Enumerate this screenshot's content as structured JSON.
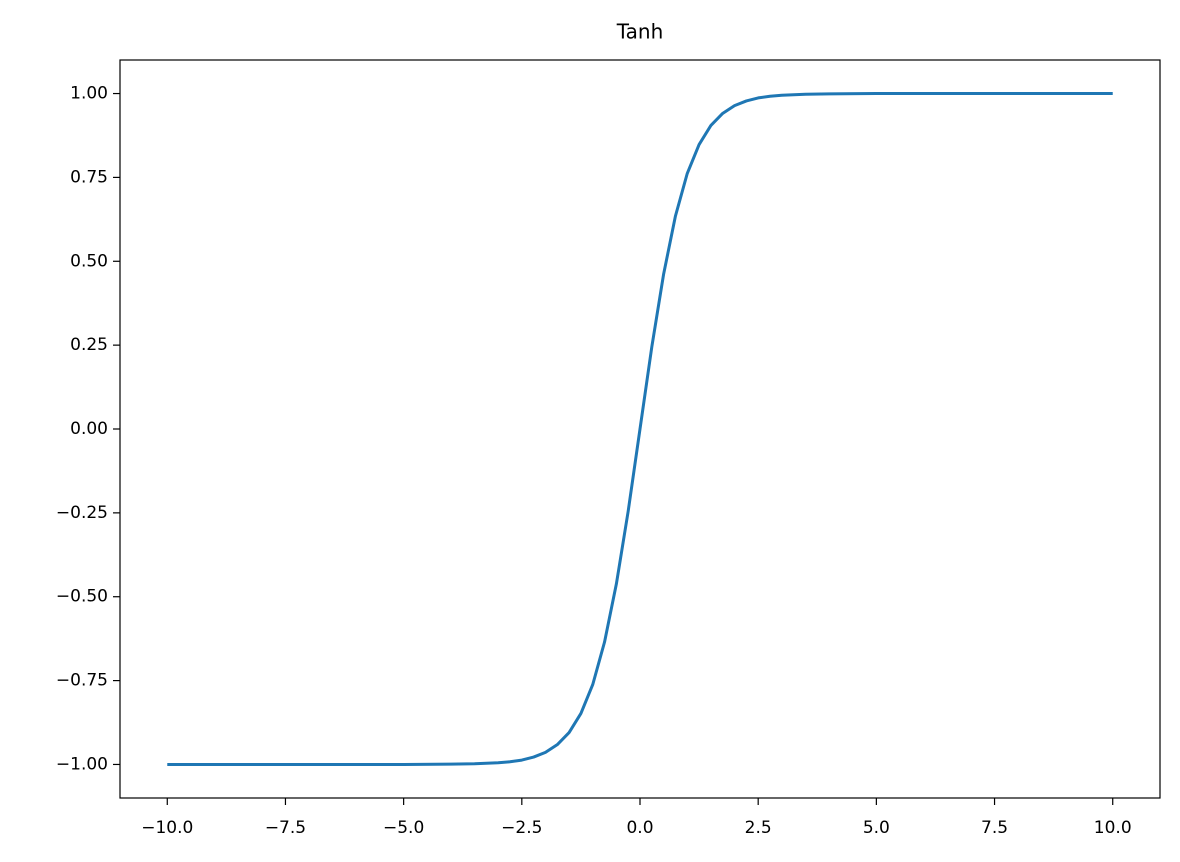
{
  "chart_data": {
    "type": "line",
    "title": "Tanh",
    "x": [
      -10,
      -8,
      -6,
      -5,
      -4,
      -3.5,
      -3,
      -2.75,
      -2.5,
      -2.25,
      -2,
      -1.75,
      -1.5,
      -1.25,
      -1,
      -0.75,
      -0.5,
      -0.25,
      0,
      0.25,
      0.5,
      0.75,
      1,
      1.25,
      1.5,
      1.75,
      2,
      2.25,
      2.5,
      2.75,
      3,
      3.5,
      4,
      5,
      6,
      8,
      10
    ],
    "series": [
      {
        "color": "#1f77b4",
        "values": [
          -1,
          -1,
          -1,
          -1,
          -0.999,
          -0.998,
          -0.995,
          -0.992,
          -0.987,
          -0.978,
          -0.964,
          -0.941,
          -0.905,
          -0.848,
          -0.762,
          -0.635,
          -0.462,
          -0.245,
          0,
          0.245,
          0.462,
          0.635,
          0.762,
          0.848,
          0.905,
          0.941,
          0.964,
          0.978,
          0.987,
          0.992,
          0.995,
          0.998,
          0.999,
          1,
          1,
          1,
          1
        ]
      }
    ],
    "xlim": [
      -11,
      11
    ],
    "xticks": [
      {
        "value": -10,
        "label": "−10.0"
      },
      {
        "value": -7.5,
        "label": "−7.5"
      },
      {
        "value": -5,
        "label": "−5.0"
      },
      {
        "value": -2.5,
        "label": "−2.5"
      },
      {
        "value": 0,
        "label": "0.0"
      },
      2.5,
      {
        "value": 5,
        "label": "5.0"
      },
      7.5,
      {
        "value": 10,
        "label": "10.0"
      }
    ],
    "ylim": [
      -1.1,
      1.1
    ],
    "yticks": [
      {
        "value": -1,
        "label": "−1.00"
      },
      {
        "value": -0.75,
        "label": "−0.75"
      },
      {
        "value": -0.5,
        "label": "−0.50"
      },
      {
        "value": -0.25,
        "label": "−0.25"
      },
      {
        "value": 0,
        "label": "0.00"
      },
      0.25,
      {
        "value": 0.5,
        "label": "0.50"
      },
      0.75,
      {
        "value": 1,
        "label": "1.00"
      }
    ],
    "grid": false
  }
}
